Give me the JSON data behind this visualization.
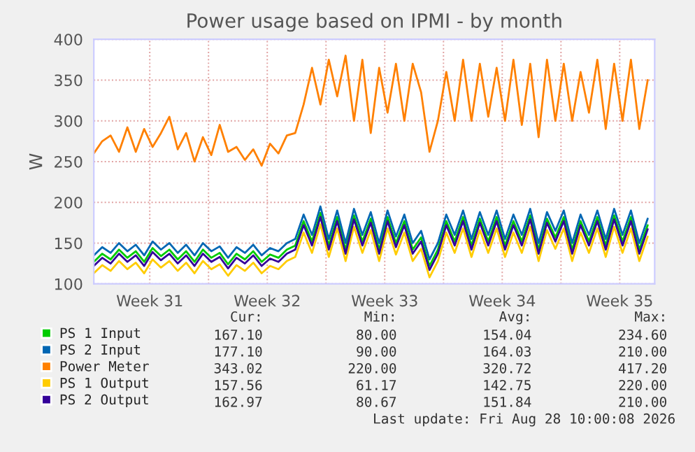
{
  "chart_data": {
    "type": "line",
    "title": "Power usage based on IPMI - by month",
    "ylabel": "W",
    "x": [
      "2026-07-27T04:00",
      "2026-07-27T16:00",
      "2026-07-28T04:00",
      "2026-07-28T16:00",
      "2026-07-29T04:00",
      "2026-07-29T16:00",
      "2026-07-30T04:00",
      "2026-07-30T16:00",
      "2026-07-31T04:00",
      "2026-07-31T16:00",
      "2026-08-01T04:00",
      "2026-08-01T16:00",
      "2026-08-02T04:00",
      "2026-08-02T16:00",
      "2026-08-03T04:00",
      "2026-08-03T16:00",
      "2026-08-04T04:00",
      "2026-08-04T16:00",
      "2026-08-05T04:00",
      "2026-08-05T16:00",
      "2026-08-06T04:00",
      "2026-08-06T16:00",
      "2026-08-07T04:00",
      "2026-08-07T16:00",
      "2026-08-08T04:00",
      "2026-08-08T16:00",
      "2026-08-09T04:00",
      "2026-08-09T16:00",
      "2026-08-10T04:00",
      "2026-08-10T16:00",
      "2026-08-11T04:00",
      "2026-08-11T16:00",
      "2026-08-12T04:00",
      "2026-08-12T16:00",
      "2026-08-13T04:00",
      "2026-08-13T16:00",
      "2026-08-14T04:00",
      "2026-08-14T16:00",
      "2026-08-15T04:00",
      "2026-08-15T16:00",
      "2026-08-16T04:00",
      "2026-08-16T16:00",
      "2026-08-17T04:00",
      "2026-08-17T16:00",
      "2026-08-18T04:00",
      "2026-08-18T16:00",
      "2026-08-19T04:00",
      "2026-08-19T16:00",
      "2026-08-20T04:00",
      "2026-08-20T16:00",
      "2026-08-21T04:00",
      "2026-08-21T16:00",
      "2026-08-22T04:00",
      "2026-08-22T16:00",
      "2026-08-23T04:00",
      "2026-08-23T16:00",
      "2026-08-24T04:00",
      "2026-08-24T16:00",
      "2026-08-25T04:00",
      "2026-08-25T16:00",
      "2026-08-26T04:00",
      "2026-08-26T16:00",
      "2026-08-27T04:00",
      "2026-08-27T16:00",
      "2026-08-28T04:00",
      "2026-08-28T16:00",
      "2026-08-29T04:00"
    ],
    "series": [
      {
        "name": "PS 1 Input",
        "color": "#00cc00",
        "values": [
          127,
          137,
          130,
          142,
          132,
          140,
          127,
          144,
          134,
          142,
          130,
          140,
          127,
          142,
          132,
          138,
          124,
          137,
          130,
          140,
          127,
          136,
          132,
          142,
          147,
          177,
          152,
          187,
          147,
          182,
          142,
          184,
          152,
          180,
          142,
          182,
          150,
          177,
          142,
          157,
          122,
          142,
          177,
          152,
          182,
          147,
          180,
          152,
          182,
          147,
          177,
          152,
          184,
          142,
          180,
          157,
          182,
          142,
          177,
          152,
          182,
          147,
          184,
          152,
          182,
          142,
          172
        ]
      },
      {
        "name": "PS 2 Input",
        "color": "#0066b3",
        "values": [
          135,
          145,
          138,
          150,
          140,
          148,
          135,
          152,
          142,
          150,
          138,
          148,
          135,
          150,
          140,
          146,
          132,
          145,
          138,
          148,
          135,
          144,
          140,
          150,
          155,
          185,
          160,
          195,
          155,
          190,
          150,
          192,
          160,
          188,
          150,
          190,
          158,
          185,
          150,
          165,
          130,
          150,
          185,
          160,
          190,
          155,
          188,
          160,
          190,
          155,
          185,
          160,
          192,
          150,
          188,
          165,
          190,
          150,
          185,
          160,
          190,
          155,
          192,
          160,
          190,
          150,
          180
        ]
      },
      {
        "name": "Power Meter",
        "color": "#ff8000",
        "values": [
          260,
          275,
          282,
          262,
          292,
          262,
          290,
          268,
          285,
          305,
          265,
          285,
          250,
          280,
          258,
          295,
          262,
          268,
          252,
          265,
          245,
          272,
          260,
          282,
          285,
          320,
          365,
          320,
          375,
          330,
          380,
          300,
          375,
          285,
          365,
          310,
          370,
          300,
          370,
          335,
          262,
          300,
          360,
          300,
          375,
          300,
          370,
          305,
          365,
          300,
          375,
          295,
          370,
          280,
          375,
          300,
          370,
          300,
          360,
          310,
          375,
          290,
          370,
          300,
          375,
          290,
          350
        ]
      },
      {
        "name": "PS 1 Output",
        "color": "#ffcc00",
        "values": [
          113,
          123,
          116,
          128,
          118,
          126,
          113,
          130,
          120,
          128,
          116,
          126,
          113,
          128,
          118,
          124,
          110,
          123,
          116,
          126,
          113,
          122,
          118,
          128,
          133,
          163,
          138,
          173,
          133,
          168,
          128,
          170,
          138,
          166,
          128,
          168,
          136,
          163,
          128,
          143,
          108,
          128,
          163,
          138,
          168,
          133,
          166,
          138,
          168,
          133,
          163,
          138,
          170,
          128,
          166,
          143,
          168,
          128,
          163,
          138,
          168,
          133,
          170,
          138,
          168,
          128,
          158
        ]
      },
      {
        "name": "PS 2 Output",
        "color": "#330099",
        "values": [
          122,
          132,
          125,
          137,
          127,
          135,
          122,
          139,
          129,
          137,
          125,
          135,
          122,
          137,
          127,
          133,
          119,
          132,
          125,
          135,
          122,
          131,
          127,
          137,
          142,
          172,
          147,
          182,
          142,
          177,
          137,
          179,
          147,
          175,
          137,
          177,
          145,
          172,
          137,
          152,
          117,
          137,
          172,
          147,
          177,
          142,
          175,
          147,
          177,
          142,
          172,
          147,
          179,
          137,
          175,
          152,
          177,
          137,
          172,
          147,
          177,
          142,
          179,
          147,
          177,
          137,
          167
        ]
      }
    ],
    "xlim": [
      "2026-07-27T04:00",
      "2026-08-29T14:00"
    ],
    "xticks": [
      {
        "value": "2026-07-30T12:00",
        "label": "Week 31"
      },
      {
        "value": "2026-08-03T00:00",
        "label": null
      },
      {
        "value": "2026-08-06T12:00",
        "label": "Week 32"
      },
      {
        "value": "2026-08-10T00:00",
        "label": null
      },
      {
        "value": "2026-08-13T12:00",
        "label": "Week 33"
      },
      {
        "value": "2026-08-17T00:00",
        "label": null
      },
      {
        "value": "2026-08-20T12:00",
        "label": "Week 34"
      },
      {
        "value": "2026-08-24T00:00",
        "label": null
      },
      {
        "value": "2026-08-27T12:00",
        "label": "Week 35"
      }
    ],
    "ylim": [
      100,
      400
    ],
    "yticks": [
      100,
      150,
      200,
      250,
      300,
      350,
      400
    ],
    "grid": true,
    "legend": "bottom left",
    "line_style": "solid",
    "marker": "none",
    "annotations": [
      "Cur:",
      "Min:",
      "Avg:",
      "Max:",
      "167.10",
      "80.00",
      "154.04",
      "234.60",
      "177.10",
      "90.00",
      "164.03",
      "210.00",
      "343.02",
      "220.00",
      "320.72",
      "417.20",
      "157.56",
      "61.17",
      "142.75",
      "220.00",
      "162.97",
      "80.67",
      "151.84",
      "210.00",
      "Last update: Fri Aug 28 10:00:08 2026"
    ]
  }
}
